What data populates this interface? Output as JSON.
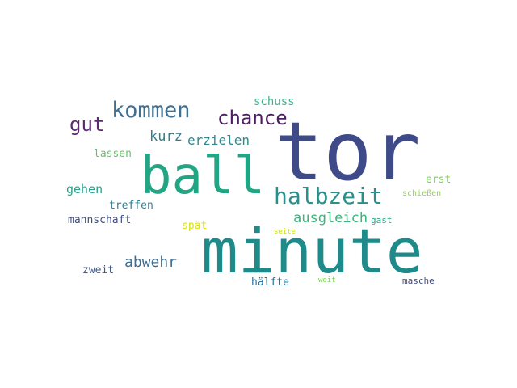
{
  "word_cloud": {
    "words": [
      {
        "text": "tor",
        "color": "#3e4b88"
      },
      {
        "text": "minute",
        "color": "#1f8a8a"
      },
      {
        "text": "ball",
        "color": "#21a583"
      },
      {
        "text": "halbzeit",
        "color": "#2a8f8a"
      },
      {
        "text": "kommen",
        "color": "#3f6f93"
      },
      {
        "text": "chance",
        "color": "#4d1e64"
      },
      {
        "text": "gut",
        "color": "#5a2a73"
      },
      {
        "text": "ausgleich",
        "color": "#3bb57b"
      },
      {
        "text": "abwehr",
        "color": "#3f6f93"
      },
      {
        "text": "kurz",
        "color": "#2f7f93"
      },
      {
        "text": "erzielen",
        "color": "#2f8a8f"
      },
      {
        "text": "gehen",
        "color": "#2aa08a"
      },
      {
        "text": "schuss",
        "color": "#3bb590"
      },
      {
        "text": "lassen",
        "color": "#5ec962"
      },
      {
        "text": "treffen",
        "color": "#2f7f93"
      },
      {
        "text": "mannschaft",
        "color": "#3b4f8a"
      },
      {
        "text": "spät",
        "color": "#d8e219"
      },
      {
        "text": "zweit",
        "color": "#3b5a8a"
      },
      {
        "text": "hälfte",
        "color": "#2a6f93"
      },
      {
        "text": "erst",
        "color": "#7ad151"
      },
      {
        "text": "schießen",
        "color": "#8fd744"
      },
      {
        "text": "gast",
        "color": "#23a883"
      },
      {
        "text": "seite",
        "color": "#c8e020"
      },
      {
        "text": "weit",
        "color": "#7ad151"
      },
      {
        "text": "masche",
        "color": "#3e4b88"
      }
    ]
  }
}
